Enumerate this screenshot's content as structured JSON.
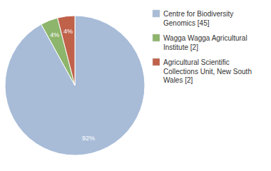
{
  "chart_data": {
    "type": "pie",
    "categories": [
      "Centre for Biodiversity\nGenomics [45]",
      "Wagga Wagga Agricultural\nInstitute [2]",
      "Agricultural Scientific\nCollections Unit, New South\nWales [2]"
    ],
    "values": [
      92,
      4,
      4
    ],
    "value_labels": [
      "92%",
      "4%",
      "4%"
    ],
    "colors": [
      "#a8bcd8",
      "#8db56b",
      "#c0614a"
    ],
    "data_labels": true,
    "legend": "right"
  }
}
